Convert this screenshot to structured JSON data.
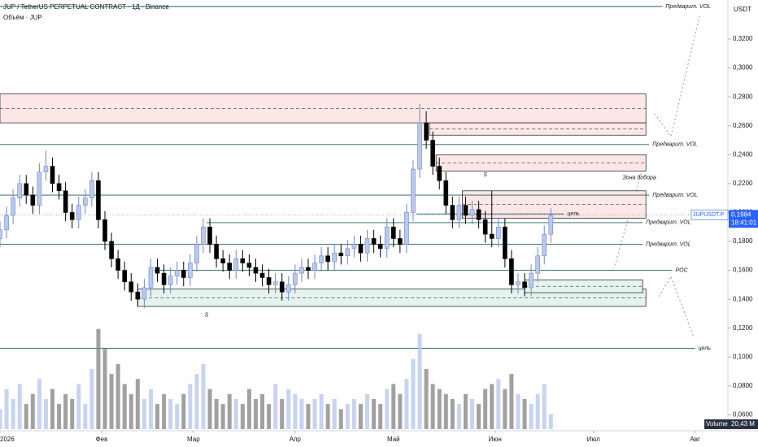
{
  "chart_data": {
    "type": "candlestick",
    "title": "JUP / TetherUS PERPETUAL CONTRACT · 1Д · Binance",
    "subtitle": "Объём · JUP",
    "currency": "USDT",
    "symbol_badge": "JUPUSDT.P",
    "price_badge": "0,1984",
    "timer": "18:41:01",
    "volume_name": "Volume",
    "volume_badge": "20,43 M",
    "up_color": "#b9c8ee",
    "down_color": "#000000",
    "volume_up_color": "#b9c8ee",
    "volume_down_color": "#8a8a8a",
    "xlim": [
      0,
      222
    ],
    "xticks": [
      {
        "value": 0,
        "label": "2026"
      },
      {
        "value": 31,
        "label": "Фев"
      },
      {
        "value": 59,
        "label": "Мар"
      },
      {
        "value": 90,
        "label": "Апр"
      },
      {
        "value": 120,
        "label": "Май"
      },
      {
        "value": 151,
        "label": "Июн"
      },
      {
        "value": 181,
        "label": "Июл"
      },
      {
        "value": 212,
        "label": "Авг"
      }
    ],
    "ylim": [
      0.049,
      0.347
    ],
    "yticks": [
      {
        "value": 0.32,
        "label": "0,3200"
      },
      {
        "value": 0.3,
        "label": "0,3000"
      },
      {
        "value": 0.28,
        "label": "0,2800"
      },
      {
        "value": 0.26,
        "label": "0,2600"
      },
      {
        "value": 0.24,
        "label": "0,2400"
      },
      {
        "value": 0.22,
        "label": "0,2200"
      },
      {
        "value": 0.2,
        "label": "0,2000"
      },
      {
        "value": 0.18,
        "label": "0,1800"
      },
      {
        "value": 0.16,
        "label": "0,1600"
      },
      {
        "value": 0.14,
        "label": "0,1400"
      },
      {
        "value": 0.12,
        "label": "0,1200"
      },
      {
        "value": 0.1,
        "label": "0,1000"
      },
      {
        "value": 0.08,
        "label": "0,0800"
      },
      {
        "value": 0.06,
        "label": "0,0600"
      }
    ],
    "volume_ylim": [
      0,
      24
    ],
    "last_price": 0.1984,
    "x": [
      0,
      2,
      4,
      6,
      8,
      10,
      12,
      14,
      16,
      18,
      20,
      22,
      24,
      26,
      28,
      30,
      32,
      34,
      36,
      38,
      40,
      42,
      44,
      46,
      48,
      50,
      52,
      54,
      56,
      58,
      60,
      62,
      64,
      66,
      68,
      70,
      72,
      74,
      76,
      78,
      80,
      82,
      84,
      86,
      88,
      90,
      92,
      94,
      96,
      98,
      100,
      102,
      104,
      106,
      108,
      110,
      112,
      114,
      116,
      118,
      120,
      122,
      124,
      126,
      128,
      130,
      132,
      134,
      136,
      138,
      140,
      142,
      144,
      146,
      148,
      150,
      152,
      154,
      156,
      158,
      160,
      162,
      164,
      166,
      168
    ],
    "open": [
      0.182,
      0.188,
      0.198,
      0.21,
      0.22,
      0.212,
      0.205,
      0.228,
      0.232,
      0.22,
      0.215,
      0.2,
      0.195,
      0.205,
      0.21,
      0.222,
      0.195,
      0.18,
      0.168,
      0.16,
      0.152,
      0.145,
      0.14,
      0.148,
      0.162,
      0.158,
      0.15,
      0.156,
      0.16,
      0.155,
      0.165,
      0.178,
      0.19,
      0.178,
      0.168,
      0.165,
      0.16,
      0.168,
      0.165,
      0.162,
      0.158,
      0.155,
      0.15,
      0.152,
      0.145,
      0.15,
      0.158,
      0.162,
      0.16,
      0.165,
      0.17,
      0.166,
      0.172,
      0.17,
      0.175,
      0.178,
      0.172,
      0.182,
      0.178,
      0.175,
      0.19,
      0.182,
      0.178,
      0.2,
      0.23,
      0.262,
      0.25,
      0.232,
      0.222,
      0.205,
      0.195,
      0.205,
      0.198,
      0.202,
      0.195,
      0.185,
      0.182,
      0.19,
      0.168,
      0.15,
      0.152,
      0.148,
      0.158,
      0.17,
      0.185
    ],
    "high": [
      0.194,
      0.204,
      0.216,
      0.226,
      0.226,
      0.218,
      0.234,
      0.243,
      0.238,
      0.226,
      0.221,
      0.206,
      0.211,
      0.216,
      0.228,
      0.228,
      0.201,
      0.186,
      0.174,
      0.166,
      0.158,
      0.151,
      0.154,
      0.168,
      0.168,
      0.164,
      0.162,
      0.166,
      0.166,
      0.171,
      0.184,
      0.196,
      0.196,
      0.184,
      0.174,
      0.171,
      0.174,
      0.174,
      0.171,
      0.168,
      0.164,
      0.161,
      0.158,
      0.158,
      0.156,
      0.164,
      0.168,
      0.168,
      0.171,
      0.176,
      0.176,
      0.178,
      0.178,
      0.181,
      0.184,
      0.184,
      0.188,
      0.188,
      0.184,
      0.196,
      0.196,
      0.188,
      0.206,
      0.236,
      0.275,
      0.27,
      0.256,
      0.238,
      0.228,
      0.211,
      0.211,
      0.211,
      0.208,
      0.208,
      0.201,
      0.215,
      0.196,
      0.196,
      0.174,
      0.158,
      0.158,
      0.164,
      0.176,
      0.191,
      0.203
    ],
    "low": [
      0.176,
      0.182,
      0.192,
      0.204,
      0.206,
      0.199,
      0.199,
      0.222,
      0.214,
      0.209,
      0.194,
      0.189,
      0.189,
      0.199,
      0.204,
      0.189,
      0.174,
      0.162,
      0.154,
      0.146,
      0.139,
      0.135,
      0.134,
      0.142,
      0.152,
      0.144,
      0.144,
      0.15,
      0.149,
      0.149,
      0.159,
      0.172,
      0.172,
      0.162,
      0.159,
      0.154,
      0.154,
      0.159,
      0.156,
      0.152,
      0.149,
      0.144,
      0.144,
      0.139,
      0.139,
      0.144,
      0.152,
      0.154,
      0.154,
      0.159,
      0.16,
      0.16,
      0.164,
      0.164,
      0.169,
      0.166,
      0.166,
      0.172,
      0.169,
      0.169,
      0.176,
      0.172,
      0.172,
      0.194,
      0.224,
      0.244,
      0.226,
      0.216,
      0.199,
      0.189,
      0.189,
      0.192,
      0.192,
      0.189,
      0.179,
      0.176,
      0.176,
      0.162,
      0.144,
      0.144,
      0.142,
      0.142,
      0.152,
      0.164,
      0.179
    ],
    "close": [
      0.188,
      0.198,
      0.21,
      0.22,
      0.212,
      0.205,
      0.228,
      0.232,
      0.22,
      0.215,
      0.2,
      0.195,
      0.205,
      0.21,
      0.222,
      0.195,
      0.18,
      0.168,
      0.16,
      0.152,
      0.145,
      0.14,
      0.148,
      0.162,
      0.158,
      0.15,
      0.156,
      0.16,
      0.155,
      0.165,
      0.178,
      0.19,
      0.178,
      0.168,
      0.165,
      0.16,
      0.168,
      0.165,
      0.162,
      0.158,
      0.155,
      0.15,
      0.152,
      0.145,
      0.15,
      0.158,
      0.162,
      0.16,
      0.165,
      0.17,
      0.166,
      0.172,
      0.17,
      0.175,
      0.178,
      0.172,
      0.182,
      0.178,
      0.175,
      0.19,
      0.182,
      0.178,
      0.2,
      0.23,
      0.262,
      0.25,
      0.232,
      0.222,
      0.205,
      0.195,
      0.205,
      0.198,
      0.202,
      0.195,
      0.185,
      0.182,
      0.19,
      0.168,
      0.15,
      0.152,
      0.148,
      0.158,
      0.17,
      0.185,
      0.198
    ],
    "volume": [
      4,
      8,
      6,
      9,
      5,
      7,
      10,
      6,
      8,
      5,
      7,
      6,
      9,
      5,
      12,
      20,
      16,
      11,
      13,
      9,
      7,
      10,
      6,
      8,
      5,
      7,
      6,
      5,
      7,
      9,
      11,
      13,
      8,
      6,
      5,
      7,
      6,
      5,
      8,
      6,
      7,
      5,
      9,
      6,
      8,
      7,
      6,
      5,
      6,
      7,
      5,
      6,
      4,
      5,
      6,
      5,
      7,
      6,
      5,
      8,
      9,
      7,
      10,
      14,
      19,
      12,
      9,
      8,
      7,
      6,
      5,
      7,
      6,
      5,
      8,
      9,
      10,
      8,
      11,
      7,
      6,
      5,
      7,
      9,
      3
    ],
    "zones": [
      {
        "low": 0.262,
        "high": 0.282,
        "start": 0,
        "end": 197,
        "color": "#fde6e6"
      },
      {
        "low": 0.2535,
        "high": 0.262,
        "start": 131,
        "end": 197,
        "color": "#fde6e6"
      },
      {
        "low": 0.2287,
        "high": 0.2398,
        "start": 133,
        "end": 197,
        "color": "#fde6e6"
      },
      {
        "low": 0.196,
        "high": 0.215,
        "start": 141,
        "end": 197,
        "color": "#fde6e6"
      },
      {
        "low": 0.135,
        "high": 0.147,
        "start": 42,
        "end": 197,
        "color": "#e4f3ee"
      },
      {
        "low": 0.1445,
        "high": 0.1534,
        "start": 160,
        "end": 196,
        "color": "#e4f3ee"
      }
    ],
    "levels": [
      {
        "value": 0.3425,
        "start": 0,
        "end": 202,
        "label": "Предварит. VOL"
      },
      {
        "value": 0.247,
        "start": 0,
        "end": 198,
        "label": "Предварит. VOL"
      },
      {
        "value": 0.212,
        "start": 0,
        "end": 198,
        "label": "Предварит. VOL"
      },
      {
        "value": 0.199,
        "start": 127,
        "end": 172,
        "label": "цель"
      },
      {
        "value": 0.193,
        "start": 63,
        "end": 196,
        "label": "Предварит. VOL"
      },
      {
        "value": 0.178,
        "start": 0,
        "end": 196,
        "label": "Предварит. VOL"
      },
      {
        "value": 0.16,
        "start": 47,
        "end": 205,
        "label": "POC"
      },
      {
        "value": 0.106,
        "start": 0,
        "end": 212,
        "label": "цель"
      }
    ],
    "annotations": [
      {
        "text": "Зона добора",
        "x": 195,
        "y": 0.224
      },
      {
        "text": "S",
        "x": 63,
        "y": 0.129
      },
      {
        "text": "S",
        "x": 148,
        "y": 0.226
      }
    ]
  }
}
